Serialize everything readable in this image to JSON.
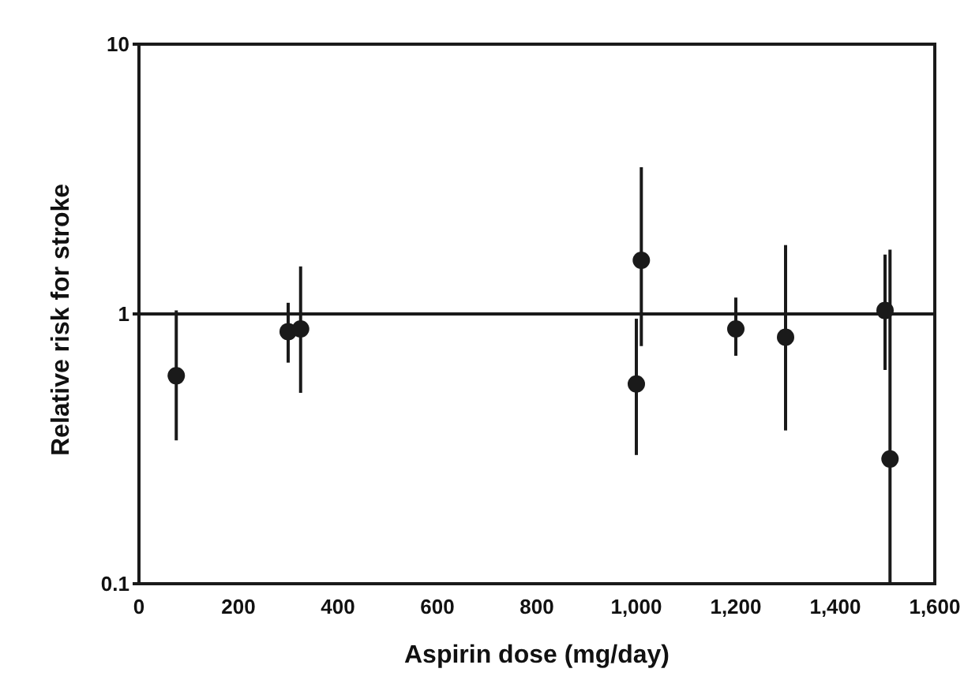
{
  "chart_data": {
    "type": "scatter",
    "xlabel": "Aspirin dose (mg/day)",
    "ylabel": "Relative risk for stroke",
    "x": [
      75,
      300,
      325,
      1000,
      1010,
      1200,
      1300,
      1500,
      1510
    ],
    "values": [
      0.59,
      0.86,
      0.88,
      0.55,
      1.58,
      0.88,
      0.82,
      1.03,
      0.29
    ],
    "errors": [
      [
        0.34,
        1.03
      ],
      [
        0.66,
        1.1
      ],
      [
        0.51,
        1.5
      ],
      [
        0.3,
        0.96
      ],
      [
        0.76,
        3.5
      ],
      [
        0.7,
        1.15
      ],
      [
        0.37,
        1.8
      ],
      [
        0.62,
        1.66
      ],
      [
        0.1,
        1.73
      ]
    ],
    "color": "#1a1a1a",
    "marker": "circle",
    "log": "y",
    "legend": false,
    "xlim": [
      0,
      1600
    ],
    "xticks": [
      0,
      200,
      400,
      600,
      800,
      {
        "value": 1000,
        "label": "1,000"
      },
      {
        "value": 1200,
        "label": "1,200"
      },
      {
        "value": 1400,
        "label": "1,400"
      },
      {
        "value": 1600,
        "label": "1,600"
      }
    ],
    "ylim": [
      0.1,
      10
    ],
    "yticks": [
      {
        "value": 0.1,
        "label": "0.1"
      },
      1,
      10
    ],
    "ref_lines": [
      {
        "axis": "y",
        "value": 1,
        "color": "#1a1a1a"
      }
    ]
  }
}
